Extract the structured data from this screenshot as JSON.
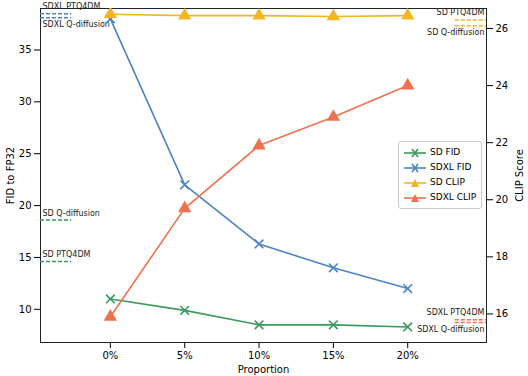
{
  "chart_data": {
    "type": "line",
    "xlabel": "Proportion",
    "ylabel": "FID to FP32",
    "y2label": "CLIP Score",
    "x": [
      0,
      5,
      10,
      15,
      20
    ],
    "xlim": [
      -4.7,
      25.3
    ],
    "xticks": [
      {
        "value": 0,
        "label": "0%"
      },
      {
        "value": 5,
        "label": "5%"
      },
      {
        "value": 10,
        "label": "10%"
      },
      {
        "value": 15,
        "label": "15%"
      },
      {
        "value": 20,
        "label": "20%"
      }
    ],
    "ylim": [
      6.8,
      39
    ],
    "yticks": [
      10,
      15,
      20,
      25,
      30,
      35
    ],
    "y2lim": [
      15.0,
      26.7
    ],
    "y2ticks": [
      16,
      18,
      20,
      22,
      24,
      26
    ],
    "grid": false,
    "legend": "right",
    "series": [
      {
        "name": "SD FID",
        "color": "#3a9a5c",
        "marker": "x",
        "axis": "y",
        "values": [
          11.0,
          9.9,
          8.5,
          8.5,
          8.3
        ]
      },
      {
        "name": "SDXL FID",
        "color": "#4a84c4",
        "marker": "x",
        "axis": "y",
        "values": [
          38.0,
          22.0,
          16.3,
          14.0,
          12.0
        ]
      },
      {
        "name": "SD CLIP",
        "color": "#f5b422",
        "marker": "triangle",
        "axis": "y2",
        "values": [
          26.5,
          26.45,
          26.45,
          26.42,
          26.45
        ]
      },
      {
        "name": "SDXL CLIP",
        "color": "#f0714f",
        "marker": "triangle",
        "axis": "y2",
        "values": [
          15.9,
          19.7,
          21.9,
          22.9,
          24.0
        ]
      }
    ],
    "annotations": [
      {
        "label": "SDXL PTQ4DM",
        "axis": "y",
        "value": 38.5,
        "color": "#4a84c4",
        "line_style": "dashed"
      },
      {
        "label": "SDXL Q-diffusion",
        "axis": "y",
        "value": 38.1,
        "color": "#4a84c4",
        "line_style": "dashed"
      },
      {
        "label": "SD Q-diffusion",
        "axis": "y",
        "value": 18.6,
        "color": "#3a9a5c",
        "line_style": "dashed"
      },
      {
        "label": "SD PTQ4DM",
        "axis": "y",
        "value": 14.6,
        "color": "#3a9a5c",
        "line_style": "dashed"
      },
      {
        "label": "SD PTQ4DM",
        "axis": "y2",
        "value": 26.3,
        "color": "#f5b422",
        "line_style": "dashed"
      },
      {
        "label": "SD Q-diffusion",
        "axis": "y2",
        "value": 26.1,
        "color": "#f5b422",
        "line_style": "dashed"
      },
      {
        "label": "SDXL PTQ4DM",
        "axis": "y2",
        "value": 15.8,
        "color": "#f0714f",
        "line_style": "dashed"
      },
      {
        "label": "SDXL Q-diffusion",
        "axis": "y2",
        "value": 15.7,
        "color": "#f0714f",
        "line_style": "dashed"
      }
    ]
  }
}
